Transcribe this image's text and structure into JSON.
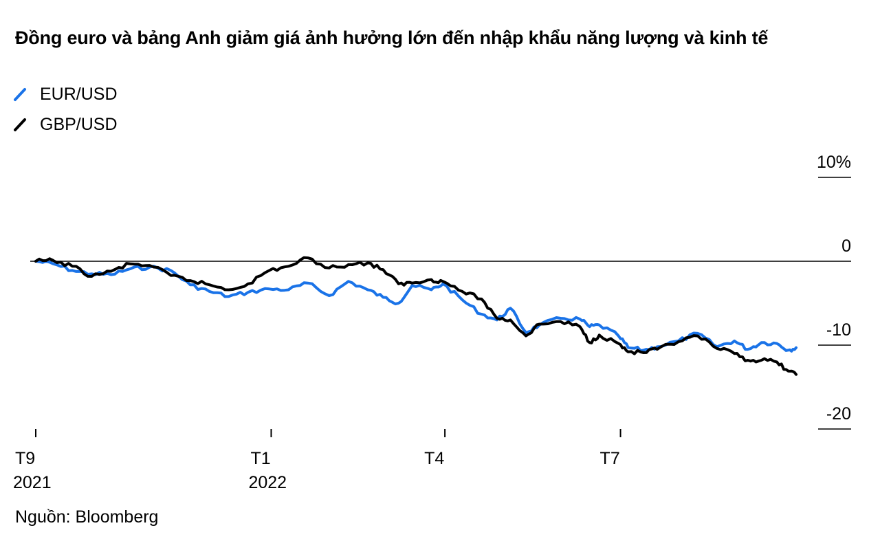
{
  "chart_data": {
    "type": "line",
    "title": "Đồng euro và bảng Anh giảm giá ảnh hưởng lớn đến nhập khẩu năng lượng và kinh tế",
    "source": "Nguồn: Bloomberg",
    "unit": "%",
    "ylim": [
      -20,
      10
    ],
    "yticks": [
      {
        "value": 10,
        "label": "10%"
      },
      {
        "value": 0,
        "label": "0"
      },
      {
        "value": -10,
        "label": "-10"
      },
      {
        "value": -20,
        "label": "-20"
      }
    ],
    "xlim": [
      "2021-09-01",
      "2022-09-30"
    ],
    "xticks": [
      {
        "date": "2021-09-01",
        "line1": "T9",
        "line2": "2021"
      },
      {
        "date": "2022-01-01",
        "line1": "T1",
        "line2": "2022"
      },
      {
        "date": "2022-04-01",
        "line1": "T4",
        "line2": ""
      },
      {
        "date": "2022-07-01",
        "line1": "T7",
        "line2": ""
      }
    ],
    "legend_position": "top-left",
    "grid": false,
    "series": [
      {
        "name": "EUR/USD",
        "color": "#1a73e8",
        "points": [
          [
            "2021-09-01",
            0.0
          ],
          [
            "2021-09-10",
            -0.3
          ],
          [
            "2021-09-20",
            -1.1
          ],
          [
            "2021-09-30",
            -1.5
          ],
          [
            "2021-10-10",
            -1.6
          ],
          [
            "2021-10-20",
            -0.9
          ],
          [
            "2021-10-30",
            -0.7
          ],
          [
            "2021-11-10",
            -1.1
          ],
          [
            "2021-11-20",
            -2.8
          ],
          [
            "2021-11-30",
            -3.6
          ],
          [
            "2021-12-10",
            -4.2
          ],
          [
            "2021-12-20",
            -3.7
          ],
          [
            "2021-12-31",
            -3.3
          ],
          [
            "2022-01-10",
            -3.4
          ],
          [
            "2022-01-20",
            -2.6
          ],
          [
            "2022-01-31",
            -4.1
          ],
          [
            "2022-02-10",
            -2.4
          ],
          [
            "2022-02-20",
            -3.4
          ],
          [
            "2022-02-28",
            -4.3
          ],
          [
            "2022-03-08",
            -5.0
          ],
          [
            "2022-03-15",
            -2.9
          ],
          [
            "2022-03-25",
            -3.4
          ],
          [
            "2022-03-31",
            -2.7
          ],
          [
            "2022-04-10",
            -4.6
          ],
          [
            "2022-04-20",
            -6.3
          ],
          [
            "2022-04-28",
            -7.0
          ],
          [
            "2022-05-05",
            -5.6
          ],
          [
            "2022-05-13",
            -8.5
          ],
          [
            "2022-05-20",
            -7.6
          ],
          [
            "2022-05-31",
            -6.8
          ],
          [
            "2022-06-10",
            -6.9
          ],
          [
            "2022-06-15",
            -7.8
          ],
          [
            "2022-06-20",
            -7.6
          ],
          [
            "2022-06-30",
            -8.9
          ],
          [
            "2022-07-05",
            -10.3
          ],
          [
            "2022-07-13",
            -10.6
          ],
          [
            "2022-07-20",
            -10.2
          ],
          [
            "2022-07-31",
            -9.5
          ],
          [
            "2022-08-10",
            -8.6
          ],
          [
            "2022-08-20",
            -10.2
          ],
          [
            "2022-08-29",
            -9.5
          ],
          [
            "2022-09-05",
            -10.5
          ],
          [
            "2022-09-12",
            -9.7
          ],
          [
            "2022-09-20",
            -9.8
          ],
          [
            "2022-09-26",
            -10.6
          ],
          [
            "2022-09-30",
            -10.3
          ]
        ]
      },
      {
        "name": "GBP/USD",
        "color": "#000000",
        "points": [
          [
            "2021-09-01",
            0.0
          ],
          [
            "2021-09-10",
            0.1
          ],
          [
            "2021-09-20",
            -0.6
          ],
          [
            "2021-09-30",
            -1.8
          ],
          [
            "2021-10-10",
            -1.2
          ],
          [
            "2021-10-20",
            -0.3
          ],
          [
            "2021-10-30",
            -0.5
          ],
          [
            "2021-11-10",
            -1.7
          ],
          [
            "2021-11-20",
            -2.3
          ],
          [
            "2021-11-30",
            -2.8
          ],
          [
            "2021-12-10",
            -3.4
          ],
          [
            "2021-12-20",
            -2.7
          ],
          [
            "2021-12-31",
            -1.1
          ],
          [
            "2022-01-10",
            -0.6
          ],
          [
            "2022-01-20",
            0.4
          ],
          [
            "2022-01-31",
            -0.8
          ],
          [
            "2022-02-10",
            -0.4
          ],
          [
            "2022-02-20",
            -0.2
          ],
          [
            "2022-02-28",
            -1.0
          ],
          [
            "2022-03-08",
            -2.7
          ],
          [
            "2022-03-15",
            -2.6
          ],
          [
            "2022-03-25",
            -2.2
          ],
          [
            "2022-03-31",
            -2.4
          ],
          [
            "2022-04-10",
            -3.6
          ],
          [
            "2022-04-20",
            -4.5
          ],
          [
            "2022-04-28",
            -6.8
          ],
          [
            "2022-05-05",
            -7.0
          ],
          [
            "2022-05-13",
            -8.9
          ],
          [
            "2022-05-20",
            -7.5
          ],
          [
            "2022-05-31",
            -7.2
          ],
          [
            "2022-06-10",
            -7.8
          ],
          [
            "2022-06-15",
            -9.7
          ],
          [
            "2022-06-20",
            -8.8
          ],
          [
            "2022-06-30",
            -9.8
          ],
          [
            "2022-07-05",
            -10.8
          ],
          [
            "2022-07-13",
            -10.9
          ],
          [
            "2022-07-20",
            -10.5
          ],
          [
            "2022-07-31",
            -9.6
          ],
          [
            "2022-08-10",
            -8.9
          ],
          [
            "2022-08-20",
            -10.4
          ],
          [
            "2022-08-29",
            -11.0
          ],
          [
            "2022-09-05",
            -11.8
          ],
          [
            "2022-09-12",
            -11.8
          ],
          [
            "2022-09-20",
            -12.0
          ],
          [
            "2022-09-26",
            -13.1
          ],
          [
            "2022-09-30",
            -13.5
          ]
        ]
      }
    ]
  }
}
